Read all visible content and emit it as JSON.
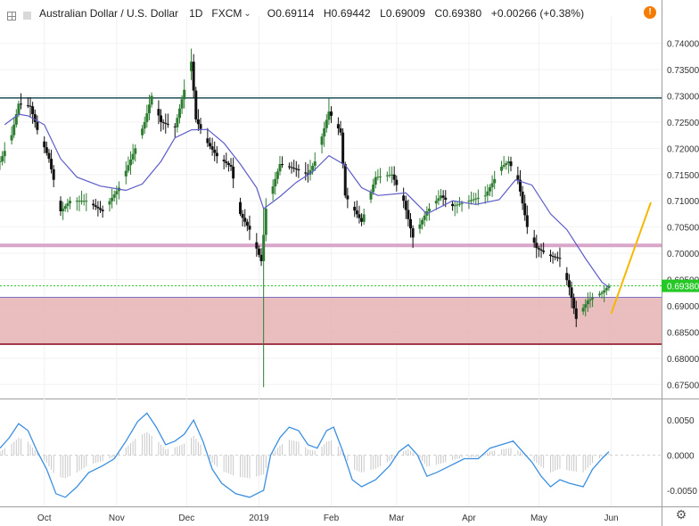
{
  "header": {
    "symbol": "Australian Dollar / U.S. Dollar",
    "interval": "1D",
    "source": "FXCM",
    "dropdown_icon": "chevron-down-icon",
    "open": "O0.69114",
    "high": "H0.69442",
    "low": "L0.69009",
    "close": "C0.69380",
    "change": "+0.00266 (+0.38%)"
  },
  "colors": {
    "candle_up": "#2e7d32",
    "candle_down": "#111111",
    "moving_average": "#5c5cc7",
    "resistance_line": "#1f4e57",
    "pink_line": "#d9a6c9",
    "support_zone_fill": "#e6b3b3",
    "support_zone_border": "#a33a4a",
    "zone_top_line": "#7f6fc4",
    "last_price_bg": "#26c826",
    "projection": "#f5b800",
    "oscillator_line": "#3b8fe0",
    "oscillator_histogram": "#c8c8c8"
  },
  "chart_data": [
    {
      "type": "candlestick",
      "title": "Australian Dollar / U.S. Dollar",
      "timeframe": "1D",
      "x_ticks": [
        "Oct",
        "Nov",
        "Dec",
        "2019",
        "Feb",
        "Mar",
        "Apr",
        "May",
        "Jun"
      ],
      "y_ticks": [
        "0.74000",
        "0.73500",
        "0.73000",
        "0.72500",
        "0.72000",
        "0.71500",
        "0.71000",
        "0.70500",
        "0.70000",
        "0.69500",
        "0.69000",
        "0.68500",
        "0.68000",
        "0.67500"
      ],
      "ylim": [
        0.6725,
        0.7435
      ],
      "last_price": "0.69380",
      "horizontal_levels": [
        {
          "name": "resistance",
          "value": 0.7296
        },
        {
          "name": "pink-level",
          "value": 0.7015
        },
        {
          "name": "zone-top",
          "value": 0.6916
        },
        {
          "name": "zone-bottom",
          "value": 0.6827
        }
      ],
      "zone": [
        0.6827,
        0.6916
      ],
      "projection": [
        {
          "date": "2019-06-01",
          "value": 0.6885
        },
        {
          "date": "2019-06-18",
          "value": 0.7097
        }
      ],
      "ma_path": [
        [
          "2018-09-14",
          0.7245
        ],
        [
          "2018-09-20",
          0.7265
        ],
        [
          "2018-09-24",
          0.7262
        ],
        [
          "2018-10-01",
          0.7245
        ],
        [
          "2018-10-08",
          0.718
        ],
        [
          "2018-10-15",
          0.7145
        ],
        [
          "2018-10-25",
          0.7128
        ],
        [
          "2018-11-05",
          0.712
        ],
        [
          "2018-11-12",
          0.7132
        ],
        [
          "2018-11-20",
          0.7175
        ],
        [
          "2018-11-26",
          0.722
        ],
        [
          "2018-12-03",
          0.7235
        ],
        [
          "2018-12-10",
          0.7236
        ],
        [
          "2018-12-17",
          0.721
        ],
        [
          "2018-12-24",
          0.717
        ],
        [
          "2018-12-31",
          0.7125
        ],
        [
          "2019-01-03",
          0.7085
        ],
        [
          "2019-01-10",
          0.7108
        ],
        [
          "2019-01-17",
          0.7135
        ],
        [
          "2019-01-24",
          0.7155
        ],
        [
          "2019-01-31",
          0.7186
        ],
        [
          "2019-02-07",
          0.7168
        ],
        [
          "2019-02-14",
          0.7125
        ],
        [
          "2019-02-21",
          0.711
        ],
        [
          "2019-03-05",
          0.7115
        ],
        [
          "2019-03-14",
          0.7075
        ],
        [
          "2019-03-25",
          0.71
        ],
        [
          "2019-04-04",
          0.7093
        ],
        [
          "2019-04-14",
          0.7102
        ],
        [
          "2019-04-21",
          0.714
        ],
        [
          "2019-04-28",
          0.713
        ],
        [
          "2019-05-06",
          0.7075
        ],
        [
          "2019-05-13",
          0.7045
        ],
        [
          "2019-05-21",
          0.699
        ],
        [
          "2019-05-28",
          0.6945
        ],
        [
          "2019-05-31",
          0.6935
        ]
      ],
      "price_path": [
        [
          "2018-09-12",
          0.7175
        ],
        [
          "2018-09-17",
          0.7225
        ],
        [
          "2018-09-20",
          0.7285
        ],
        [
          "2018-09-25",
          0.728
        ],
        [
          "2018-09-28",
          0.7235
        ],
        [
          "2018-10-03",
          0.718
        ],
        [
          "2018-10-08",
          0.708
        ],
        [
          "2018-10-12",
          0.71
        ],
        [
          "2018-10-19",
          0.71
        ],
        [
          "2018-10-26",
          0.708
        ],
        [
          "2018-11-02",
          0.7125
        ],
        [
          "2018-11-09",
          0.72
        ],
        [
          "2018-11-13",
          0.725
        ],
        [
          "2018-11-16",
          0.73
        ],
        [
          "2018-11-20",
          0.725
        ],
        [
          "2018-11-26",
          0.724
        ],
        [
          "2018-12-03",
          0.7365
        ],
        [
          "2018-12-05",
          0.7255
        ],
        [
          "2018-12-10",
          0.721
        ],
        [
          "2018-12-14",
          0.7185
        ],
        [
          "2018-12-20",
          0.7165
        ],
        [
          "2018-12-24",
          0.7075
        ],
        [
          "2018-12-28",
          0.7045
        ],
        [
          "2019-01-02",
          0.6985
        ],
        [
          "2019-01-04",
          0.7085
        ],
        [
          "2019-01-10",
          0.717
        ],
        [
          "2019-01-17",
          0.716
        ],
        [
          "2019-01-22",
          0.715
        ],
        [
          "2019-01-25",
          0.7175
        ],
        [
          "2019-01-31",
          0.727
        ],
        [
          "2019-02-05",
          0.723
        ],
        [
          "2019-02-07",
          0.711
        ],
        [
          "2019-02-14",
          0.706
        ],
        [
          "2019-02-20",
          0.7145
        ],
        [
          "2019-02-27",
          0.715
        ],
        [
          "2019-03-04",
          0.71
        ],
        [
          "2019-03-08",
          0.703
        ],
        [
          "2019-03-14",
          0.708
        ],
        [
          "2019-03-20",
          0.711
        ],
        [
          "2019-03-25",
          0.709
        ],
        [
          "2019-04-01",
          0.71
        ],
        [
          "2019-04-08",
          0.711
        ],
        [
          "2019-04-15",
          0.7165
        ],
        [
          "2019-04-18",
          0.7175
        ],
        [
          "2019-04-22",
          0.714
        ],
        [
          "2019-04-26",
          0.705
        ],
        [
          "2019-04-30",
          0.701
        ],
        [
          "2019-05-06",
          0.6995
        ],
        [
          "2019-05-10",
          0.699
        ],
        [
          "2019-05-14",
          0.6935
        ],
        [
          "2019-05-17",
          0.6875
        ],
        [
          "2019-05-22",
          0.691
        ],
        [
          "2019-05-28",
          0.6925
        ],
        [
          "2019-05-31",
          0.6938
        ]
      ],
      "spikes": [
        {
          "date": "2019-01-03",
          "high": 0.7085,
          "low": 0.6745
        },
        {
          "date": "2018-12-03",
          "high": 0.739,
          "low": 0.733
        },
        {
          "date": "2019-01-31",
          "high": 0.7295,
          "low": 0.7245
        }
      ]
    },
    {
      "type": "line",
      "title": "",
      "y_ticks": [
        "0.0050",
        "0.0000",
        "-0.0050"
      ],
      "ylim": [
        -0.0073,
        0.0077
      ],
      "zero_line": 0.0,
      "series": [
        {
          "values": [
            [
              "2018-09-12",
              0.001
            ],
            [
              "2018-09-16",
              0.0025
            ],
            [
              "2018-09-20",
              0.0045
            ],
            [
              "2018-09-24",
              0.0035
            ],
            [
              "2018-09-28",
              0.0005
            ],
            [
              "2018-10-02",
              -0.002
            ],
            [
              "2018-10-06",
              -0.0055
            ],
            [
              "2018-10-10",
              -0.006
            ],
            [
              "2018-10-15",
              -0.0045
            ],
            [
              "2018-10-20",
              -0.0025
            ],
            [
              "2018-10-26",
              -0.0015
            ],
            [
              "2018-10-31",
              -0.0005
            ],
            [
              "2018-11-05",
              0.002
            ],
            [
              "2018-11-10",
              0.0048
            ],
            [
              "2018-11-14",
              0.006
            ],
            [
              "2018-11-18",
              0.004
            ],
            [
              "2018-11-22",
              0.0015
            ],
            [
              "2018-11-26",
              0.002
            ],
            [
              "2018-11-30",
              0.003
            ],
            [
              "2018-12-04",
              0.005
            ],
            [
              "2018-12-08",
              0.002
            ],
            [
              "2018-12-12",
              -0.002
            ],
            [
              "2018-12-16",
              -0.004
            ],
            [
              "2018-12-22",
              -0.0055
            ],
            [
              "2018-12-28",
              -0.006
            ],
            [
              "2019-01-03",
              -0.005
            ],
            [
              "2019-01-06",
              0.0
            ],
            [
              "2019-01-10",
              0.0025
            ],
            [
              "2019-01-14",
              0.004
            ],
            [
              "2019-01-18",
              0.0035
            ],
            [
              "2019-01-22",
              0.0015
            ],
            [
              "2019-01-26",
              0.001
            ],
            [
              "2019-01-30",
              0.0035
            ],
            [
              "2019-02-02",
              0.004
            ],
            [
              "2019-02-06",
              0.0005
            ],
            [
              "2019-02-10",
              -0.0035
            ],
            [
              "2019-02-14",
              -0.0045
            ],
            [
              "2019-02-20",
              -0.0035
            ],
            [
              "2019-02-26",
              -0.0015
            ],
            [
              "2019-03-02",
              0.0005
            ],
            [
              "2019-03-06",
              0.0015
            ],
            [
              "2019-03-10",
              0.0
            ],
            [
              "2019-03-14",
              -0.003
            ],
            [
              "2019-03-18",
              -0.0025
            ],
            [
              "2019-03-24",
              -0.0015
            ],
            [
              "2019-03-30",
              -0.0005
            ],
            [
              "2019-04-05",
              -0.0005
            ],
            [
              "2019-04-10",
              0.001
            ],
            [
              "2019-04-15",
              0.0015
            ],
            [
              "2019-04-20",
              0.002
            ],
            [
              "2019-04-24",
              0.0005
            ],
            [
              "2019-04-28",
              -0.001
            ],
            [
              "2019-05-02",
              -0.003
            ],
            [
              "2019-05-06",
              -0.0045
            ],
            [
              "2019-05-10",
              -0.0035
            ],
            [
              "2019-05-14",
              -0.004
            ],
            [
              "2019-05-20",
              -0.0045
            ],
            [
              "2019-05-24",
              -0.002
            ],
            [
              "2019-05-28",
              -0.0005
            ],
            [
              "2019-05-31",
              0.0005
            ]
          ]
        }
      ]
    }
  ]
}
